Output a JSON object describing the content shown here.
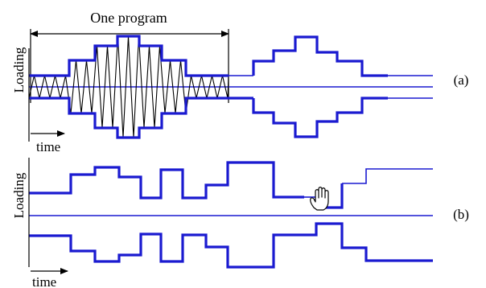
{
  "figure": {
    "panel_a": {
      "title": "One program",
      "ylabel": "Loading",
      "xlabel": "time",
      "tag": "(a)"
    },
    "panel_b": {
      "ylabel": "Loading",
      "xlabel": "time",
      "tag": "(b)"
    },
    "colors": {
      "signal": "#1a1ad0",
      "axes": "#000000",
      "oscillation": "#000000"
    },
    "icons": [
      "hand-cursor-icon"
    ]
  }
}
